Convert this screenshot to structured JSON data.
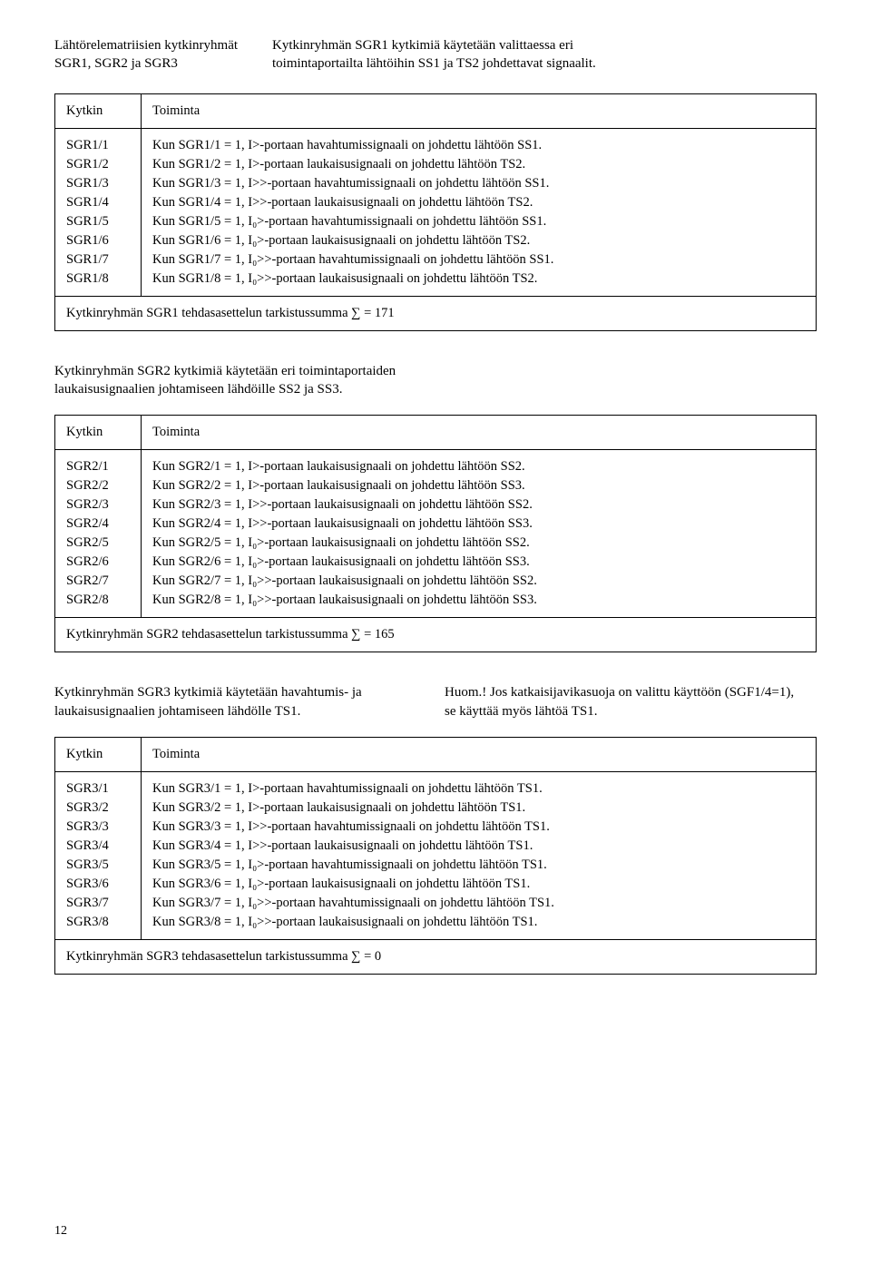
{
  "header": {
    "left": "Lähtörelematriisien kytkinryhmät SGR1, SGR2 ja SGR3",
    "right": "Kytkinryhmän SGR1 kytkimiä käytetään valittaessa eri toimintaportailta lähtöihin SS1 ja TS2 johdettavat signaalit."
  },
  "table1": {
    "head_switch": "Kytkin",
    "head_action": "Toiminta",
    "rows": [
      {
        "sw": "SGR1/1",
        "txt": "Kun SGR1/1 = 1, I>-portaan havahtumissignaali on johdettu lähtöön SS1."
      },
      {
        "sw": "SGR1/2",
        "txt": "Kun SGR1/2 = 1, I>-portaan laukaisusignaali on johdettu lähtöön TS2."
      },
      {
        "sw": "SGR1/3",
        "txt": "Kun SGR1/3 = 1, I>>-portaan havahtumissignaali on johdettu lähtöön SS1."
      },
      {
        "sw": "SGR1/4",
        "txt": "Kun SGR1/4 = 1, I>>-portaan laukaisusignaali on johdettu lähtöön TS2."
      },
      {
        "sw": "SGR1/5",
        "txt": "Kun SGR1/5 = 1, I₀>-portaan havahtumissignaali on johdettu lähtöön SS1."
      },
      {
        "sw": "SGR1/6",
        "txt": "Kun SGR1/6 = 1, I₀>-portaan laukaisusignaali on johdettu lähtöön TS2."
      },
      {
        "sw": "SGR1/7",
        "txt": "Kun SGR1/7 = 1, I₀>>-portaan havahtumissignaali on johdettu lähtöön SS1."
      },
      {
        "sw": "SGR1/8",
        "txt": "Kun SGR1/8 = 1, I₀>>-portaan laukaisusignaali on johdettu lähtöön TS2."
      }
    ],
    "checksum": "Kytkinryhmän SGR1 tehdasasettelun tarkistussumma ∑ = 171"
  },
  "intro2": "Kytkinryhmän SGR2 kytkimiä käytetään eri toimintaportaiden laukaisusignaalien johtamiseen lähdöille SS2 ja SS3.",
  "table2": {
    "head_switch": "Kytkin",
    "head_action": "Toiminta",
    "rows": [
      {
        "sw": "SGR2/1",
        "txt": "Kun SGR2/1 = 1, I>-portaan laukaisusignaali on johdettu lähtöön SS2."
      },
      {
        "sw": "SGR2/2",
        "txt": "Kun SGR2/2 = 1, I>-portaan laukaisusignaali on johdettu lähtöön SS3."
      },
      {
        "sw": "SGR2/3",
        "txt": "Kun SGR2/3 = 1, I>>-portaan laukaisusignaali on johdettu lähtöön SS2."
      },
      {
        "sw": "SGR2/4",
        "txt": "Kun SGR2/4 = 1, I>>-portaan laukaisusignaali on johdettu lähtöön SS3."
      },
      {
        "sw": "SGR2/5",
        "txt": "Kun SGR2/5 = 1, I₀>-portaan laukaisusignaali on johdettu lähtöön SS2."
      },
      {
        "sw": "SGR2/6",
        "txt": "Kun SGR2/6 = 1, I₀>-portaan laukaisusignaali on johdettu lähtöön SS3."
      },
      {
        "sw": "SGR2/7",
        "txt": "Kun SGR2/7 = 1, I₀>>-portaan laukaisusignaali on johdettu lähtöön SS2."
      },
      {
        "sw": "SGR2/8",
        "txt": "Kun SGR2/8 = 1, I₀>>-portaan laukaisusignaali on johdettu lähtöön SS3."
      }
    ],
    "checksum": "Kytkinryhmän SGR2 tehdasasettelun tarkistussumma ∑ = 165"
  },
  "intro3": {
    "left": "Kytkinryhmän SGR3 kytkimiä käytetään havahtumis- ja laukaisusignaalien johtamiseen lähdölle TS1.",
    "right": "Huom.! Jos katkaisijavikasuoja on valittu käyttöön (SGF1/4=1), se käyttää myös lähtöä TS1."
  },
  "table3": {
    "head_switch": "Kytkin",
    "head_action": "Toiminta",
    "rows": [
      {
        "sw": "SGR3/1",
        "txt": "Kun SGR3/1 = 1, I>-portaan havahtumissignaali on johdettu lähtöön TS1."
      },
      {
        "sw": "SGR3/2",
        "txt": "Kun SGR3/2 = 1, I>-portaan laukaisusignaali on johdettu lähtöön TS1."
      },
      {
        "sw": "SGR3/3",
        "txt": "Kun SGR3/3 = 1, I>>-portaan havahtumissignaali on johdettu lähtöön TS1."
      },
      {
        "sw": "SGR3/4",
        "txt": "Kun SGR3/4 = 1, I>>-portaan laukaisusignaali on johdettu lähtöön TS1."
      },
      {
        "sw": "SGR3/5",
        "txt": "Kun SGR3/5 = 1, I₀>-portaan havahtumissignaali on johdettu lähtöön TS1."
      },
      {
        "sw": "SGR3/6",
        "txt": "Kun SGR3/6 = 1, I₀>-portaan laukaisusignaali on johdettu lähtöön TS1."
      },
      {
        "sw": "SGR3/7",
        "txt": "Kun SGR3/7 = 1, I₀>>-portaan havahtumissignaali on johdettu lähtöön TS1."
      },
      {
        "sw": "SGR3/8",
        "txt": "Kun SGR3/8 = 1, I₀>>-portaan laukaisusignaali on johdettu lähtöön TS1."
      }
    ],
    "checksum": "Kytkinryhmän SGR3 tehdasasettelun tarkistussumma ∑ = 0"
  },
  "pagenum": "12"
}
